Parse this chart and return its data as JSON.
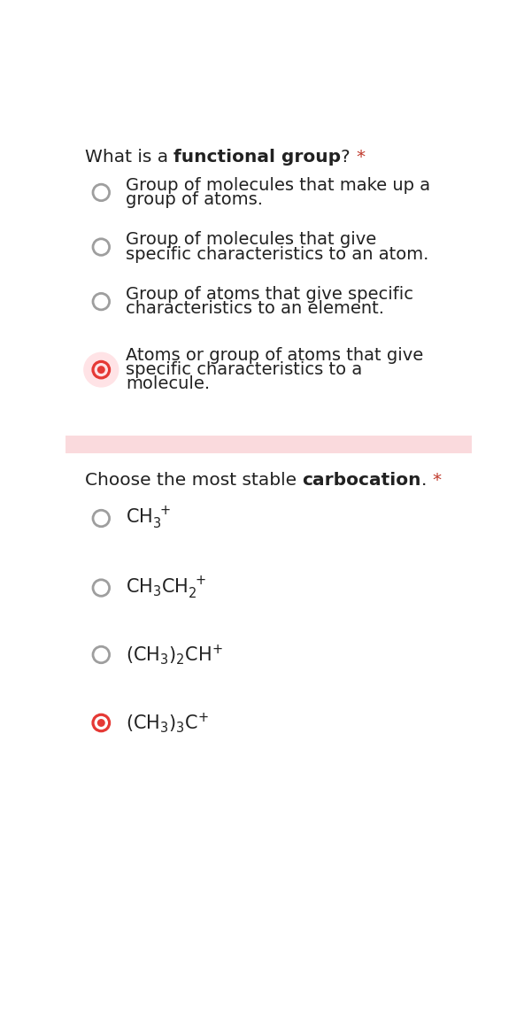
{
  "bg_color": "#ffffff",
  "separator_color": "#fadadd",
  "q1_plain1": "What is a ",
  "q1_bold": "functional group",
  "q1_plain2": "? ",
  "q1_star": "*",
  "q1_options": [
    [
      "Group of molecules that make up a",
      "group of atoms."
    ],
    [
      "Group of molecules that give",
      "specific characteristics to an atom."
    ],
    [
      "Group of atoms that give specific",
      "characteristics to an element."
    ],
    [
      "Atoms or group of atoms that give",
      "specific characteristics to a",
      "molecule."
    ]
  ],
  "q1_selected": 3,
  "q2_plain1": "Choose the most stable ",
  "q2_bold": "carbocation",
  "q2_plain2": ". ",
  "q2_star": "*",
  "q2_selected": 3,
  "radio_unsel_color": "#9e9e9e",
  "radio_sel_outer": "#e53935",
  "radio_sel_inner": "#e53935",
  "radio_sel_bg": "#ffcdd2",
  "text_color": "#212121",
  "star_color": "#c0392b",
  "font_size_q": 14.5,
  "font_size_opt": 14.0,
  "font_size_chem": 15.0
}
